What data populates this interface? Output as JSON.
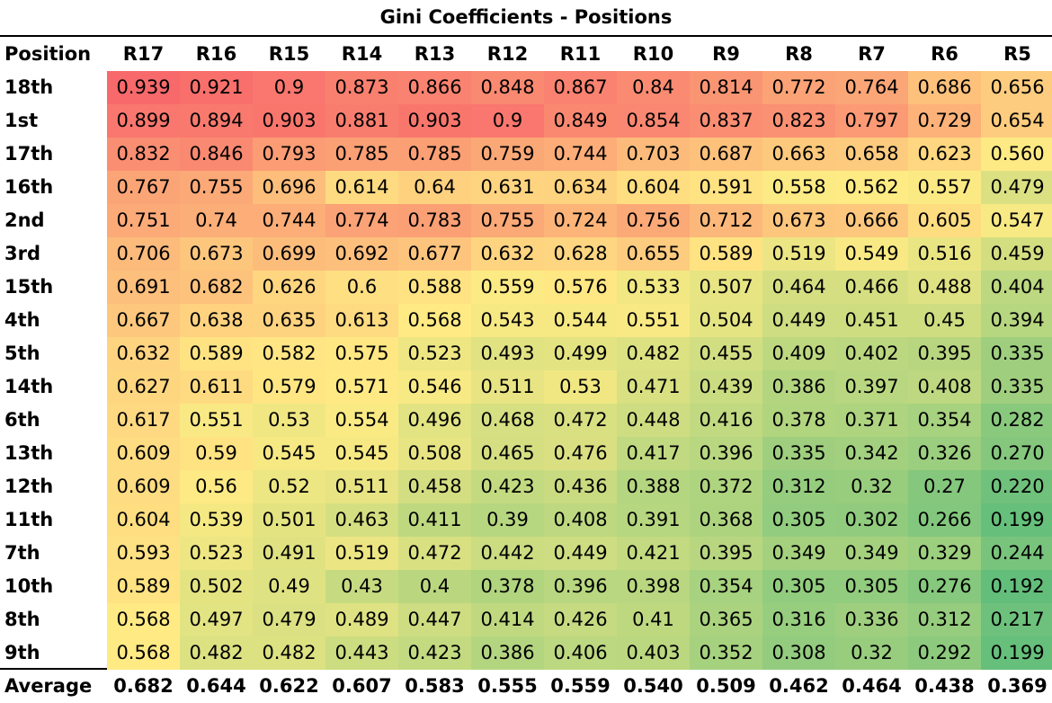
{
  "chart_data": {
    "type": "heatmap",
    "title": "Gini Coefficients - Positions",
    "row_header": "Position",
    "columns": [
      "R17",
      "R16",
      "R15",
      "R14",
      "R13",
      "R12",
      "R11",
      "R10",
      "R9",
      "R8",
      "R7",
      "R6",
      "R5"
    ],
    "rows": [
      {
        "label": "18th",
        "values": [
          "0.939",
          "0.921",
          "0.9",
          "0.873",
          "0.866",
          "0.848",
          "0.867",
          "0.84",
          "0.814",
          "0.772",
          "0.764",
          "0.686",
          "0.656"
        ]
      },
      {
        "label": "1st",
        "values": [
          "0.899",
          "0.894",
          "0.903",
          "0.881",
          "0.903",
          "0.9",
          "0.849",
          "0.854",
          "0.837",
          "0.823",
          "0.797",
          "0.729",
          "0.654"
        ]
      },
      {
        "label": "17th",
        "values": [
          "0.832",
          "0.846",
          "0.793",
          "0.785",
          "0.785",
          "0.759",
          "0.744",
          "0.703",
          "0.687",
          "0.663",
          "0.658",
          "0.623",
          "0.560"
        ]
      },
      {
        "label": "16th",
        "values": [
          "0.767",
          "0.755",
          "0.696",
          "0.614",
          "0.64",
          "0.631",
          "0.634",
          "0.604",
          "0.591",
          "0.558",
          "0.562",
          "0.557",
          "0.479"
        ]
      },
      {
        "label": "2nd",
        "values": [
          "0.751",
          "0.74",
          "0.744",
          "0.774",
          "0.783",
          "0.755",
          "0.724",
          "0.756",
          "0.712",
          "0.673",
          "0.666",
          "0.605",
          "0.547"
        ]
      },
      {
        "label": "3rd",
        "values": [
          "0.706",
          "0.673",
          "0.699",
          "0.692",
          "0.677",
          "0.632",
          "0.628",
          "0.655",
          "0.589",
          "0.519",
          "0.549",
          "0.516",
          "0.459"
        ]
      },
      {
        "label": "15th",
        "values": [
          "0.691",
          "0.682",
          "0.626",
          "0.6",
          "0.588",
          "0.559",
          "0.576",
          "0.533",
          "0.507",
          "0.464",
          "0.466",
          "0.488",
          "0.404"
        ]
      },
      {
        "label": "4th",
        "values": [
          "0.667",
          "0.638",
          "0.635",
          "0.613",
          "0.568",
          "0.543",
          "0.544",
          "0.551",
          "0.504",
          "0.449",
          "0.451",
          "0.45",
          "0.394"
        ]
      },
      {
        "label": "5th",
        "values": [
          "0.632",
          "0.589",
          "0.582",
          "0.575",
          "0.523",
          "0.493",
          "0.499",
          "0.482",
          "0.455",
          "0.409",
          "0.402",
          "0.395",
          "0.335"
        ]
      },
      {
        "label": "14th",
        "values": [
          "0.627",
          "0.611",
          "0.579",
          "0.571",
          "0.546",
          "0.511",
          "0.53",
          "0.471",
          "0.439",
          "0.386",
          "0.397",
          "0.408",
          "0.335"
        ]
      },
      {
        "label": "6th",
        "values": [
          "0.617",
          "0.551",
          "0.53",
          "0.554",
          "0.496",
          "0.468",
          "0.472",
          "0.448",
          "0.416",
          "0.378",
          "0.371",
          "0.354",
          "0.282"
        ]
      },
      {
        "label": "13th",
        "values": [
          "0.609",
          "0.59",
          "0.545",
          "0.545",
          "0.508",
          "0.465",
          "0.476",
          "0.417",
          "0.396",
          "0.335",
          "0.342",
          "0.326",
          "0.270"
        ]
      },
      {
        "label": "12th",
        "values": [
          "0.609",
          "0.56",
          "0.52",
          "0.511",
          "0.458",
          "0.423",
          "0.436",
          "0.388",
          "0.372",
          "0.312",
          "0.32",
          "0.27",
          "0.220"
        ]
      },
      {
        "label": "11th",
        "values": [
          "0.604",
          "0.539",
          "0.501",
          "0.463",
          "0.411",
          "0.39",
          "0.408",
          "0.391",
          "0.368",
          "0.305",
          "0.302",
          "0.266",
          "0.199"
        ]
      },
      {
        "label": "7th",
        "values": [
          "0.593",
          "0.523",
          "0.491",
          "0.519",
          "0.472",
          "0.442",
          "0.449",
          "0.421",
          "0.395",
          "0.349",
          "0.349",
          "0.329",
          "0.244"
        ]
      },
      {
        "label": "10th",
        "values": [
          "0.589",
          "0.502",
          "0.49",
          "0.43",
          "0.4",
          "0.378",
          "0.396",
          "0.398",
          "0.354",
          "0.305",
          "0.305",
          "0.276",
          "0.192"
        ]
      },
      {
        "label": "8th",
        "values": [
          "0.568",
          "0.497",
          "0.479",
          "0.489",
          "0.447",
          "0.414",
          "0.426",
          "0.41",
          "0.365",
          "0.316",
          "0.336",
          "0.312",
          "0.217"
        ]
      },
      {
        "label": "9th",
        "values": [
          "0.568",
          "0.482",
          "0.482",
          "0.443",
          "0.423",
          "0.386",
          "0.406",
          "0.403",
          "0.352",
          "0.308",
          "0.32",
          "0.292",
          "0.199"
        ]
      }
    ],
    "average": {
      "label": "Average",
      "values": [
        "0.682",
        "0.644",
        "0.622",
        "0.607",
        "0.583",
        "0.555",
        "0.559",
        "0.540",
        "0.509",
        "0.462",
        "0.464",
        "0.438",
        "0.369"
      ]
    },
    "color_scale": {
      "low": "#63be7b",
      "mid": "#ffeb84",
      "high": "#f8696b"
    }
  }
}
